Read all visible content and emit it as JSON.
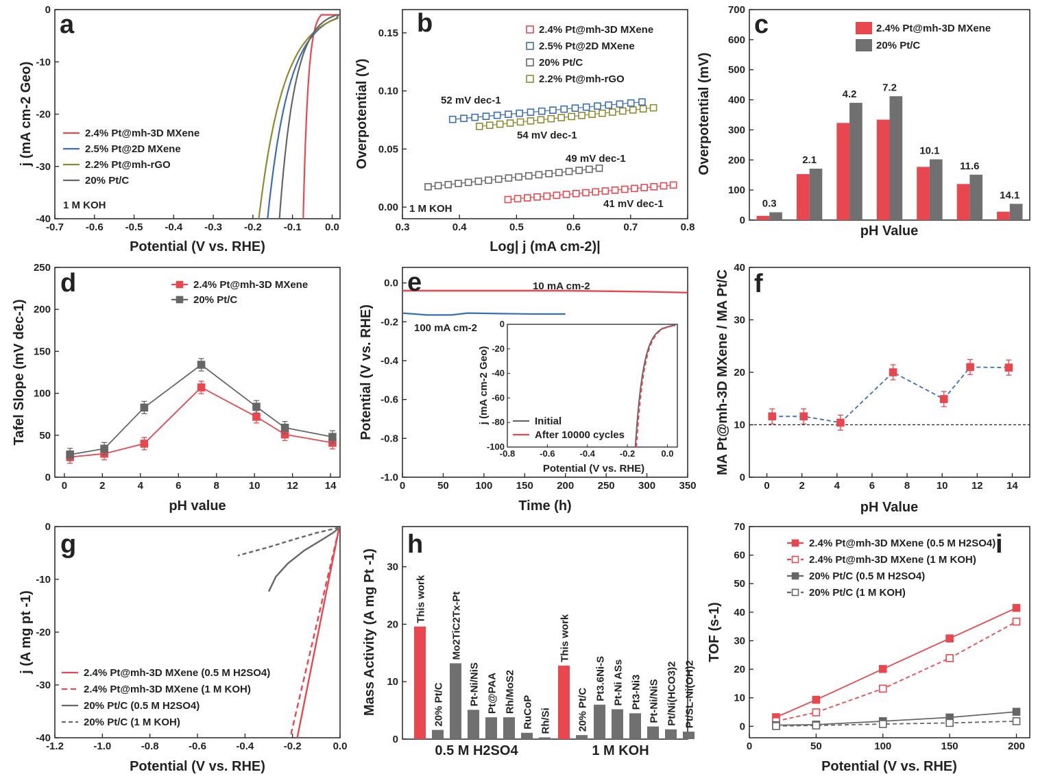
{
  "colors": {
    "red": "#e8474f",
    "blue": "#3a6db5",
    "gray": "#666666",
    "olive": "#8b8b2e",
    "grayBar": "#707070",
    "lightgray": "#999999",
    "dark": "#222222"
  },
  "panels": {
    "a": {
      "label": "a",
      "xlabel": "Potential (V vs. RHE)",
      "ylabel": "j (mA cm-2 Geo)",
      "condition": "1 M KOH"
    },
    "b": {
      "label": "b",
      "xlabel": "Log| j (mA cm-2)|",
      "ylabel": "Overpotential (V)",
      "condition": "1 M KOH"
    },
    "c": {
      "label": "c",
      "xlabel": "pH Value",
      "ylabel": "Overpotential (mV)"
    },
    "d": {
      "label": "d",
      "xlabel": "pH value",
      "ylabel": "Tafel Slope (mV dec-1)"
    },
    "e": {
      "label": "e",
      "xlabel": "Time (h)",
      "ylabel": "Potential (V vs. RHE)",
      "inset_xlabel": "Potential (V vs. RHE)",
      "inset_ylabel": "j (mA cm-2 Geo)"
    },
    "f": {
      "label": "f",
      "xlabel": "pH Value",
      "ylabel": "MA Pt@mh-3D MXene / MA Pt/C"
    },
    "g": {
      "label": "g",
      "xlabel": "Potential (V vs. RHE)",
      "ylabel": "j (A mg pt -1)"
    },
    "h": {
      "label": "h",
      "ylabel": "Mass Activity (A mg Pt -1)"
    },
    "i": {
      "label": "i",
      "xlabel": "Potential (V vs. RHE)",
      "ylabel": "TOF (s-1)"
    }
  },
  "chart_data": [
    {
      "id": "a",
      "type": "line",
      "title": "",
      "xlim": [
        -0.7,
        0.02
      ],
      "ylim": [
        -40,
        0
      ],
      "xticks": [
        "-0.7",
        "-0.6",
        "-0.5",
        "-0.4",
        "-0.3",
        "-0.2",
        "-0.1",
        "0.0"
      ],
      "yticks": [
        "0",
        "-10",
        "-20",
        "-30",
        "-40"
      ],
      "series": [
        {
          "name": "2.4% Pt@mh-3D MXene",
          "onset": -0.073,
          "scale": 0.0095
        },
        {
          "name": "2.5% Pt@2D MXene",
          "onset": -0.163,
          "scale": 0.042
        },
        {
          "name": "2.2% Pt@mh-rGO",
          "onset": -0.185,
          "scale": 0.048
        },
        {
          "name": "20% Pt/C",
          "onset": -0.133,
          "scale": 0.03
        }
      ]
    },
    {
      "id": "b",
      "type": "scatter",
      "xlim": [
        0.3,
        0.8
      ],
      "ylim": [
        -0.01,
        0.17
      ],
      "xticks": [
        "0.3",
        "0.4",
        "0.5",
        "0.6",
        "0.7",
        "0.8"
      ],
      "yticks": [
        "0.00",
        "0.05",
        "0.10",
        "0.15"
      ],
      "series": [
        {
          "name": "2.4% Pt@mh-3D MXene",
          "x0": 0.485,
          "x1": 0.775,
          "y0": 0.0065,
          "y1": 0.019,
          "slope_label": "41 mV dec-1"
        },
        {
          "name": "2.5% Pt@2D MXene",
          "x0": 0.388,
          "x1": 0.72,
          "y0": 0.0755,
          "y1": 0.0905,
          "slope_label": "52 mV dec-1"
        },
        {
          "name": "20% Pt/C",
          "x0": 0.345,
          "x1": 0.645,
          "y0": 0.0175,
          "y1": 0.0335,
          "slope_label": "49 mV dec-1"
        },
        {
          "name": "2.2% Pt@mh-rGO",
          "x0": 0.435,
          "x1": 0.74,
          "y0": 0.0695,
          "y1": 0.0855,
          "slope_label": "54 mV dec-1"
        }
      ]
    },
    {
      "id": "c",
      "type": "bar",
      "ylim": [
        0,
        700
      ],
      "yticks": [
        "0",
        "100",
        "200",
        "300",
        "400",
        "500",
        "600",
        "700"
      ],
      "categories": [
        "0.3",
        "2.1",
        "4.2",
        "7.2",
        "10.1",
        "11.6",
        "14.1"
      ],
      "series": [
        {
          "name": "2.4% Pt@mh-3D MXene",
          "values": [
            14,
            153,
            323,
            334,
            177,
            120,
            28
          ]
        },
        {
          "name": "20% Pt/C",
          "values": [
            26,
            171,
            390,
            412,
            202,
            151,
            54
          ]
        }
      ]
    },
    {
      "id": "d",
      "type": "line",
      "xlim": [
        -0.5,
        14.5
      ],
      "ylim": [
        0,
        250
      ],
      "xticks": [
        "0",
        "2",
        "4",
        "6",
        "8",
        "10",
        "12",
        "14"
      ],
      "yticks": [
        "0",
        "50",
        "100",
        "150",
        "200",
        "250"
      ],
      "x": [
        0.3,
        2.1,
        4.2,
        7.2,
        10.1,
        11.6,
        14.1
      ],
      "series": [
        {
          "name": "2.4% Pt@mh-3D MXene",
          "values": [
            24,
            28,
            40,
            107,
            72,
            51,
            41
          ]
        },
        {
          "name": "20% Pt/C",
          "values": [
            27,
            34,
            83,
            134,
            84,
            59,
            48
          ]
        }
      ]
    },
    {
      "id": "e",
      "type": "line",
      "xlim": [
        0,
        350
      ],
      "ylim": [
        -1.0,
        0.08
      ],
      "xticks": [
        "0",
        "50",
        "100",
        "150",
        "200",
        "250",
        "300",
        "350"
      ],
      "yticks": [
        "0.0",
        "-0.2",
        "-0.4",
        "-0.6",
        "-0.8",
        "-1.0"
      ],
      "series": [
        {
          "name": "10 mA cm-2",
          "x": [
            0,
            100,
            200,
            300,
            350
          ],
          "y": [
            -0.04,
            -0.04,
            -0.04,
            -0.045,
            -0.05
          ]
        },
        {
          "name": "100 mA cm-2",
          "x": [
            0,
            30,
            60,
            80,
            120,
            160,
            200
          ],
          "y": [
            -0.155,
            -0.165,
            -0.165,
            -0.155,
            -0.158,
            -0.16,
            -0.16
          ]
        }
      ],
      "inset": {
        "xlim": [
          -0.8,
          0.05
        ],
        "ylim": [
          -100,
          0
        ],
        "xticks": [
          "-0.8",
          "-0.6",
          "-0.4",
          "-0.2",
          "0.0"
        ],
        "yticks": [
          "0",
          "-20",
          "-40",
          "-60",
          "-80",
          "-100"
        ],
        "series": [
          {
            "name": "Initial"
          },
          {
            "name": "After 10000 cycles"
          }
        ]
      }
    },
    {
      "id": "f",
      "type": "scatter",
      "xlim": [
        -1,
        15
      ],
      "ylim": [
        0,
        40
      ],
      "xticks": [
        "0",
        "2",
        "4",
        "6",
        "8",
        "10",
        "12",
        "14"
      ],
      "yticks": [
        "0",
        "10",
        "20",
        "30",
        "40"
      ],
      "x": [
        0.3,
        2.1,
        4.2,
        7.2,
        10.1,
        11.6,
        13.8
      ],
      "values": [
        11.6,
        11.6,
        10.4,
        20.0,
        14.9,
        21.0,
        20.9
      ],
      "reference": 10
    },
    {
      "id": "g",
      "type": "line",
      "xlim": [
        -1.2,
        0.0
      ],
      "ylim": [
        -40,
        0
      ],
      "xticks": [
        "-1.2",
        "-1.0",
        "-0.8",
        "-0.6",
        "-0.4",
        "-0.2",
        "0.0"
      ],
      "yticks": [
        "0",
        "-10",
        "-20",
        "-30",
        "-40"
      ],
      "series": [
        {
          "name": "2.4% Pt@mh-3D MXene (0.5 M H2SO4)",
          "x": [
            -0.005,
            -0.18
          ],
          "y": [
            -0.5,
            -40
          ]
        },
        {
          "name": "2.4% Pt@mh-3D MXene (1 M KOH)",
          "x": [
            -0.005,
            -0.21
          ],
          "y": [
            -0.5,
            -40
          ]
        },
        {
          "name": "20% Pt/C (0.5 M H2SO4)",
          "x": [
            -0.005,
            -0.03,
            -0.08,
            -0.15,
            -0.22,
            -0.27,
            -0.3
          ],
          "y": [
            -0.3,
            -1.2,
            -2.6,
            -4.5,
            -7.0,
            -9.5,
            -12.3
          ]
        },
        {
          "name": "20% Pt/C (1 M KOH)",
          "x": [
            -0.005,
            -0.1,
            -0.2,
            -0.3,
            -0.43
          ],
          "y": [
            -0.2,
            -1.2,
            -2.5,
            -3.9,
            -5.5
          ]
        }
      ]
    },
    {
      "id": "h",
      "type": "bar",
      "ylim": [
        0,
        37
      ],
      "yticks": [
        "0",
        "10",
        "20",
        "30"
      ],
      "groups": [
        {
          "name": "0.5 M H2SO4",
          "bars": [
            {
              "label": "This work",
              "value": 19.6,
              "highlight": true
            },
            {
              "label": "20% Pt/C",
              "value": 1.6
            },
            {
              "label": "Mo2TiC2Tx-Pt",
              "value": 13.2
            },
            {
              "label": "Pt-Ni/NiS",
              "value": 5.1
            },
            {
              "label": "Pt@PAA",
              "value": 3.8
            },
            {
              "label": "Rh/MoS2",
              "value": 3.8
            },
            {
              "label": "RuCoP",
              "value": 1.1
            },
            {
              "label": "Rh/Si",
              "value": 0.3
            }
          ]
        },
        {
          "name": "1 M KOH",
          "bars": [
            {
              "label": "This work",
              "value": 12.8,
              "highlight": true
            },
            {
              "label": "20% Pt/C",
              "value": 0.7
            },
            {
              "label": "Pt3.6Ni-S",
              "value": 6.0
            },
            {
              "label": "Pt-Ni ASs",
              "value": 5.2
            },
            {
              "label": "Pt3-Ni3",
              "value": 4.5
            },
            {
              "label": "Pt-Ni/NiS",
              "value": 2.2
            },
            {
              "label": "Pt/Ni(HCO3)2",
              "value": 1.7
            },
            {
              "label": "Pt/SL-Ni(OH)2",
              "value": 1.3
            }
          ]
        }
      ]
    },
    {
      "id": "i",
      "type": "line",
      "xlim": [
        0,
        210
      ],
      "ylim": [
        -4,
        70
      ],
      "xticks": [
        "0",
        "50",
        "100",
        "150",
        "200"
      ],
      "yticks": [
        "0",
        "10",
        "20",
        "30",
        "40",
        "50",
        "60",
        "70"
      ],
      "x": [
        20,
        50,
        100,
        150,
        200
      ],
      "series": [
        {
          "name": "2.4% Pt@mh-3D MXene (0.5 M H2SO4)",
          "values": [
            3.2,
            9.3,
            20.1,
            30.8,
            41.5
          ]
        },
        {
          "name": "2.4% Pt@mh-3D MXene (1 M KOH)",
          "values": [
            1.8,
            4.9,
            13.2,
            23.9,
            36.7
          ]
        },
        {
          "name": "20% Pt/C (0.5 M H2SO4)",
          "values": [
            0.4,
            0.6,
            1.8,
            3.1,
            5.1
          ]
        },
        {
          "name": "20% Pt/C (1 M KOH)",
          "values": [
            0.1,
            0.3,
            0.8,
            1.2,
            1.8
          ]
        }
      ]
    }
  ]
}
